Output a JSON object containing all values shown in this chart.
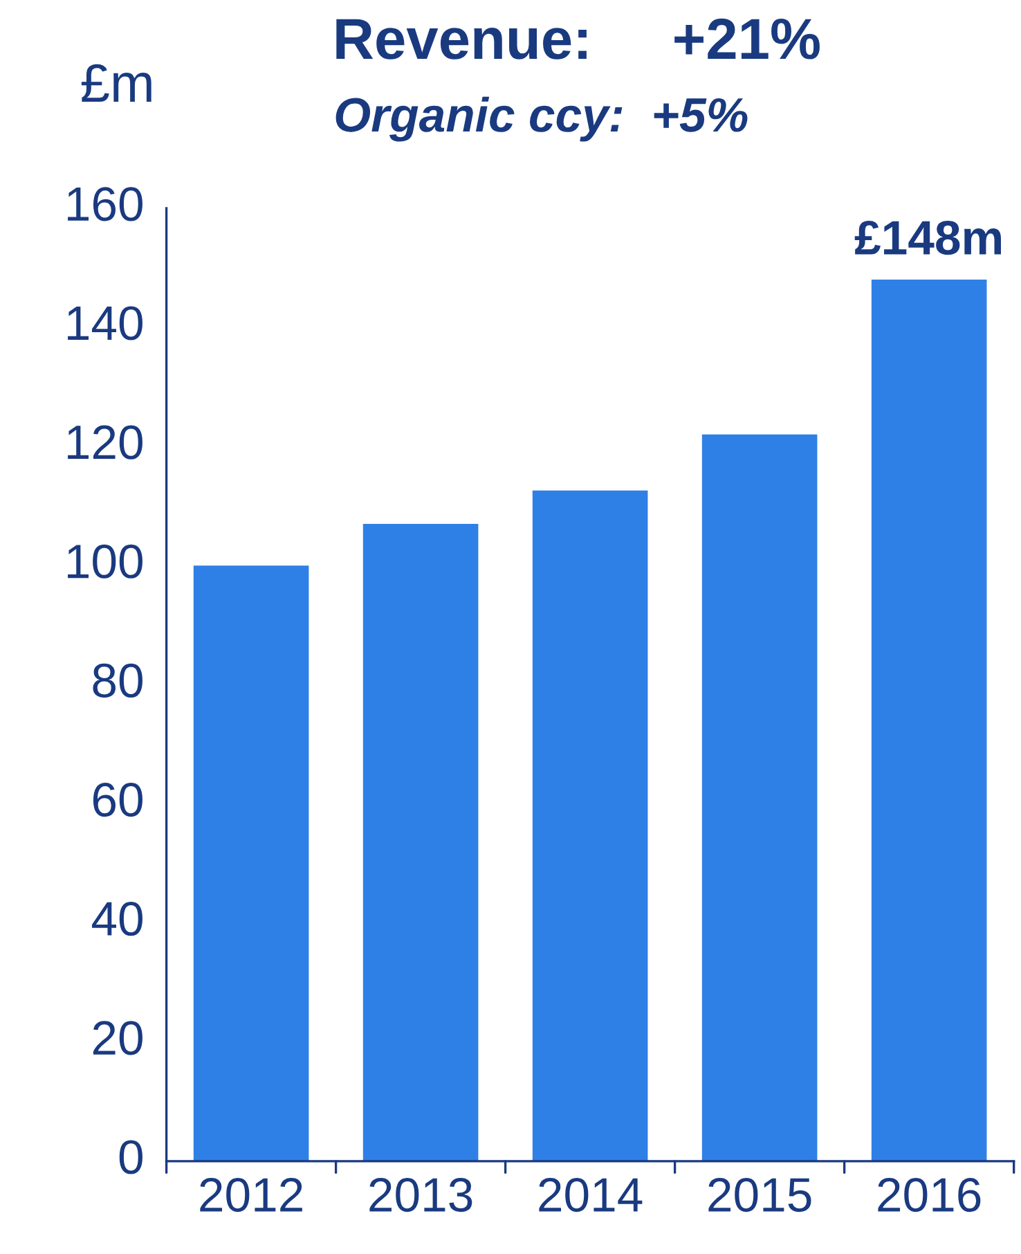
{
  "chart_data": {
    "type": "bar",
    "title": "Revenue:     +21%",
    "subtitle": "Organic ccy:  +5%",
    "ylabel": "£m",
    "categories": [
      "2012",
      "2013",
      "2014",
      "2015",
      "2016"
    ],
    "values": [
      100,
      107,
      112.6,
      122,
      148
    ],
    "value_labels": [
      null,
      null,
      null,
      null,
      "£148m"
    ],
    "color": "#2f80e6",
    "ylim": [
      0,
      160
    ],
    "yticks": [
      0,
      20,
      40,
      60,
      80,
      100,
      120,
      140,
      160
    ],
    "grid": false,
    "legend": false
  }
}
